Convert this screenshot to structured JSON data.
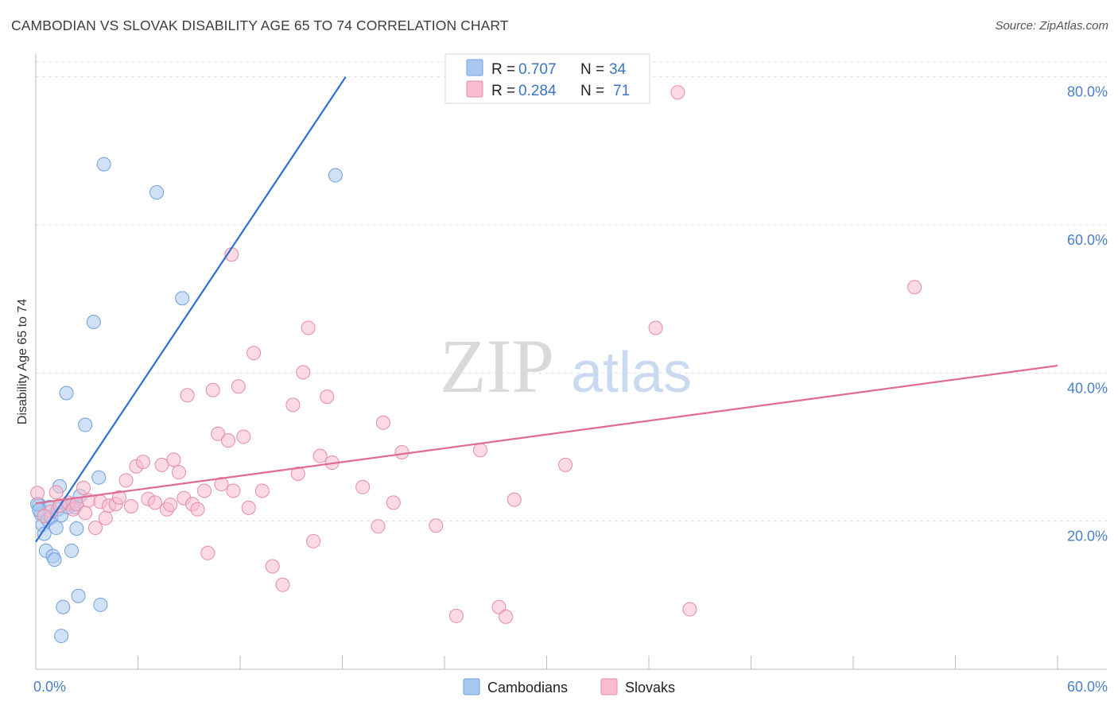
{
  "title": "CAMBODIAN VS SLOVAK DISABILITY AGE 65 TO 74 CORRELATION CHART",
  "source": "Source: ZipAtlas.com",
  "watermark": {
    "zip": "ZIP",
    "atlas": "atlas"
  },
  "legend_top": [
    {
      "r_label": "R =",
      "r_value": "0.707",
      "n_label": "N =",
      "n_value": "34",
      "color": "#a9c8ef",
      "stroke": "#6f9fdc"
    },
    {
      "r_label": "R =",
      "r_value": "0.284",
      "n_label": "N =",
      "n_value": "71",
      "color": "#f7bccd",
      "stroke": "#e88aa8"
    }
  ],
  "legend_bottom": [
    {
      "label": "Cambodians",
      "color": "#a9c8ef",
      "stroke": "#6f9fdc"
    },
    {
      "label": "Slovaks",
      "color": "#f7bccd",
      "stroke": "#e88aa8"
    }
  ],
  "chart_data": {
    "type": "scatter",
    "title": "CAMBODIAN VS SLOVAK DISABILITY AGE 65 TO 74 CORRELATION CHART",
    "xlabel": "",
    "ylabel": "Disability Age 65 to 74",
    "xlim": [
      0,
      60
    ],
    "ylim": [
      0,
      82
    ],
    "x_tick_labels": [
      "0.0%",
      "60.0%"
    ],
    "y_ticks": [
      20,
      40,
      60,
      80
    ],
    "y_tick_labels": [
      "20.0%",
      "40.0%",
      "60.0%",
      "80.0%"
    ],
    "grid": true,
    "series": [
      {
        "name": "Cambodians",
        "color": "#6f9fdc",
        "fill": "#a9c8ef",
        "trend": {
          "x": [
            0,
            18.2
          ],
          "y": [
            17.2,
            80.0
          ],
          "color": "#2f6fd1"
        },
        "points": [
          [
            0.2,
            22.2
          ],
          [
            0.3,
            21.0
          ],
          [
            0.4,
            19.5
          ],
          [
            0.5,
            18.3
          ],
          [
            0.6,
            16.0
          ],
          [
            0.7,
            20.2
          ],
          [
            0.8,
            21.9
          ],
          [
            0.9,
            20.5
          ],
          [
            1.0,
            15.3
          ],
          [
            1.1,
            14.8
          ],
          [
            1.2,
            19.1
          ],
          [
            1.3,
            21.6
          ],
          [
            1.4,
            24.7
          ],
          [
            1.5,
            20.8
          ],
          [
            1.6,
            8.4
          ],
          [
            1.5,
            4.5
          ],
          [
            1.8,
            37.3
          ],
          [
            1.9,
            21.9
          ],
          [
            2.1,
            16.0
          ],
          [
            2.2,
            22.3
          ],
          [
            2.3,
            21.9
          ],
          [
            2.4,
            19.0
          ],
          [
            2.5,
            9.9
          ],
          [
            2.6,
            23.4
          ],
          [
            2.9,
            33.0
          ],
          [
            3.4,
            46.9
          ],
          [
            3.7,
            25.9
          ],
          [
            3.8,
            8.7
          ],
          [
            4.0,
            68.2
          ],
          [
            7.1,
            64.4
          ],
          [
            8.6,
            50.1
          ],
          [
            17.6,
            66.7
          ],
          [
            0.1,
            22.3
          ],
          [
            0.2,
            21.5
          ]
        ]
      },
      {
        "name": "Slovaks",
        "color": "#e88aa8",
        "fill": "#f7bccd",
        "trend": {
          "x": [
            0,
            60
          ],
          "y": [
            22.4,
            41.0
          ],
          "color": "#e06c94"
        },
        "points": [
          [
            0.1,
            23.8
          ],
          [
            0.9,
            21.3
          ],
          [
            1.4,
            22.1
          ],
          [
            1.9,
            22.5
          ],
          [
            2.2,
            21.6
          ],
          [
            2.4,
            22.3
          ],
          [
            2.8,
            24.5
          ],
          [
            3.1,
            22.8
          ],
          [
            3.5,
            19.1
          ],
          [
            3.8,
            22.6
          ],
          [
            4.1,
            20.4
          ],
          [
            4.3,
            22.1
          ],
          [
            4.7,
            22.3
          ],
          [
            4.9,
            23.2
          ],
          [
            5.3,
            25.5
          ],
          [
            5.6,
            22.0
          ],
          [
            5.9,
            27.4
          ],
          [
            6.3,
            28.0
          ],
          [
            6.6,
            23.0
          ],
          [
            7.0,
            22.5
          ],
          [
            7.4,
            27.6
          ],
          [
            7.7,
            21.6
          ],
          [
            7.9,
            22.2
          ],
          [
            8.1,
            28.3
          ],
          [
            8.4,
            26.6
          ],
          [
            8.7,
            23.1
          ],
          [
            8.9,
            37.0
          ],
          [
            9.2,
            22.3
          ],
          [
            9.5,
            21.6
          ],
          [
            9.9,
            24.1
          ],
          [
            10.1,
            15.7
          ],
          [
            10.4,
            37.7
          ],
          [
            10.7,
            31.8
          ],
          [
            10.9,
            25.0
          ],
          [
            11.3,
            30.9
          ],
          [
            11.6,
            24.1
          ],
          [
            11.9,
            38.2
          ],
          [
            12.2,
            31.4
          ],
          [
            12.5,
            21.8
          ],
          [
            12.8,
            42.7
          ],
          [
            13.3,
            24.1
          ],
          [
            13.9,
            13.9
          ],
          [
            14.5,
            11.4
          ],
          [
            15.1,
            35.7
          ],
          [
            15.4,
            26.4
          ],
          [
            15.7,
            40.1
          ],
          [
            16.0,
            46.1
          ],
          [
            16.3,
            17.3
          ],
          [
            16.7,
            28.8
          ],
          [
            17.1,
            36.8
          ],
          [
            17.4,
            27.9
          ],
          [
            19.2,
            24.6
          ],
          [
            20.1,
            19.3
          ],
          [
            20.4,
            33.3
          ],
          [
            21.0,
            22.5
          ],
          [
            21.5,
            29.3
          ],
          [
            23.5,
            19.4
          ],
          [
            24.7,
            7.2
          ],
          [
            26.1,
            29.6
          ],
          [
            27.2,
            8.4
          ],
          [
            27.6,
            7.1
          ],
          [
            28.1,
            22.9
          ],
          [
            31.1,
            27.6
          ],
          [
            36.4,
            46.1
          ],
          [
            37.7,
            77.9
          ],
          [
            38.4,
            8.1
          ],
          [
            51.6,
            51.6
          ],
          [
            11.5,
            56.0
          ],
          [
            0.5,
            20.7
          ],
          [
            1.2,
            23.9
          ],
          [
            2.9,
            21.1
          ]
        ]
      }
    ]
  }
}
